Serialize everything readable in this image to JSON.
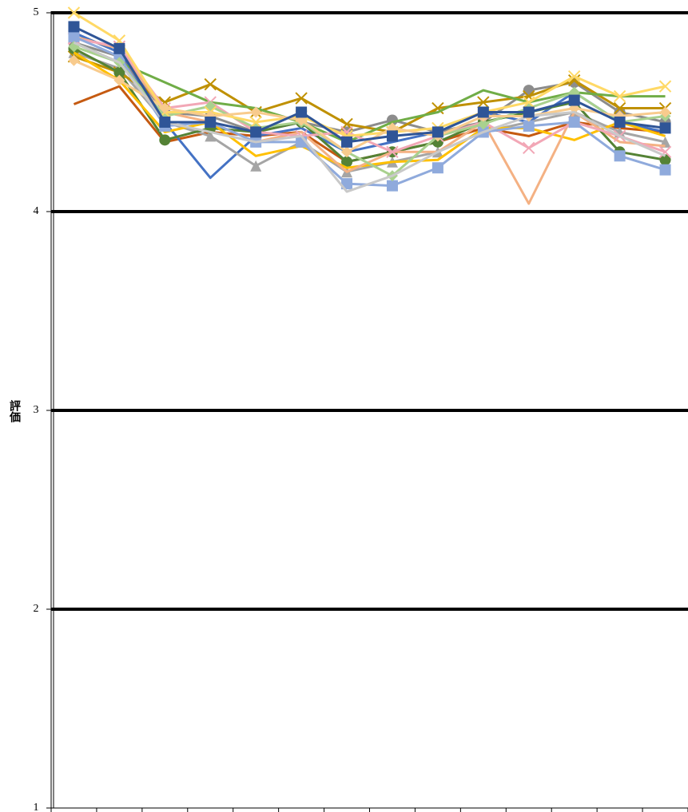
{
  "chart_data": {
    "type": "line",
    "y_label": "評価",
    "categories": [
      null,
      null,
      null,
      null,
      null,
      null,
      null,
      null,
      null,
      null,
      null,
      null,
      null,
      null
    ],
    "ylim": [
      1,
      5
    ],
    "yticks": [
      1,
      2,
      3,
      4,
      5
    ],
    "grid": true,
    "series": [
      {
        "color": "#c55a11",
        "marker": "none",
        "values": [
          4.54,
          4.63,
          4.35,
          4.4,
          4.38,
          4.4,
          4.25,
          4.3,
          4.35,
          4.42,
          4.38,
          4.45,
          4.42,
          4.4
        ]
      },
      {
        "color": "#4472c4",
        "marker": "none",
        "values": [
          4.9,
          4.8,
          4.45,
          4.17,
          4.38,
          4.42,
          4.3,
          4.35,
          4.4,
          4.5,
          4.45,
          4.6,
          4.45,
          4.4
        ]
      },
      {
        "color": "#8c8c8c",
        "marker": "circle",
        "values": [
          4.85,
          4.78,
          4.5,
          4.48,
          4.4,
          4.45,
          4.4,
          4.46,
          4.4,
          4.45,
          4.61,
          4.65,
          4.5,
          4.45
        ]
      },
      {
        "color": "#a5a5a5",
        "marker": "triangle",
        "values": [
          4.8,
          4.72,
          4.45,
          4.38,
          4.23,
          4.35,
          4.2,
          4.25,
          4.3,
          4.4,
          4.45,
          4.5,
          4.4,
          4.35
        ]
      },
      {
        "color": "#bf9000",
        "marker": "x",
        "values": [
          4.78,
          4.7,
          4.55,
          4.64,
          4.5,
          4.57,
          4.44,
          4.4,
          4.52,
          4.55,
          4.58,
          4.66,
          4.52,
          4.52
        ]
      },
      {
        "color": "#70ad47",
        "marker": "none",
        "values": [
          4.85,
          4.75,
          4.65,
          4.55,
          4.52,
          4.45,
          4.35,
          4.45,
          4.5,
          4.61,
          4.55,
          4.6,
          4.58,
          4.58
        ]
      },
      {
        "color": "#548235",
        "marker": "circle",
        "values": [
          4.82,
          4.7,
          4.36,
          4.42,
          4.4,
          4.45,
          4.25,
          4.3,
          4.35,
          4.45,
          4.5,
          4.55,
          4.3,
          4.26
        ]
      },
      {
        "color": "#ffc000",
        "marker": "none",
        "values": [
          4.8,
          4.66,
          4.4,
          4.45,
          4.28,
          4.33,
          4.22,
          4.25,
          4.26,
          4.42,
          4.42,
          4.36,
          4.45,
          4.38
        ]
      },
      {
        "color": "#f4b183",
        "marker": "none",
        "values": [
          4.88,
          4.82,
          4.5,
          4.45,
          4.35,
          4.4,
          4.2,
          4.3,
          4.3,
          4.45,
          4.04,
          4.5,
          4.35,
          4.33
        ]
      },
      {
        "color": "#f2a7b6",
        "marker": "x",
        "values": [
          4.87,
          4.83,
          4.52,
          4.55,
          4.4,
          4.38,
          4.4,
          4.3,
          4.38,
          4.45,
          4.32,
          4.45,
          4.38,
          4.3
        ]
      },
      {
        "color": "#8faadc",
        "marker": "square",
        "values": [
          4.88,
          4.78,
          4.43,
          4.45,
          4.35,
          4.35,
          4.14,
          4.13,
          4.22,
          4.4,
          4.43,
          4.45,
          4.28,
          4.21
        ]
      },
      {
        "color": "#a9d18e",
        "marker": "diamond",
        "values": [
          4.83,
          4.75,
          4.48,
          4.53,
          4.42,
          4.45,
          4.3,
          4.18,
          4.38,
          4.44,
          4.52,
          4.6,
          4.45,
          4.48
        ]
      },
      {
        "color": "#ffd966",
        "marker": "x",
        "values": [
          5.0,
          4.86,
          4.5,
          4.5,
          4.45,
          4.48,
          4.38,
          4.4,
          4.42,
          4.5,
          4.55,
          4.68,
          4.58,
          4.63
        ]
      },
      {
        "color": "#f8cb8d",
        "marker": "diamond",
        "values": [
          4.76,
          4.66,
          4.52,
          4.48,
          4.5,
          4.46,
          4.3,
          4.42,
          4.38,
          4.48,
          4.48,
          4.52,
          4.48,
          4.5
        ]
      },
      {
        "color": "#c9c9c9",
        "marker": "none",
        "values": [
          4.85,
          4.75,
          4.45,
          4.4,
          4.35,
          4.38,
          4.1,
          4.18,
          4.3,
          4.4,
          4.48,
          4.5,
          4.38,
          4.28
        ]
      },
      {
        "color": "#2f5597",
        "marker": "square",
        "values": [
          4.93,
          4.82,
          4.45,
          4.45,
          4.4,
          4.5,
          4.35,
          4.38,
          4.4,
          4.5,
          4.5,
          4.56,
          4.45,
          4.42
        ]
      }
    ]
  }
}
